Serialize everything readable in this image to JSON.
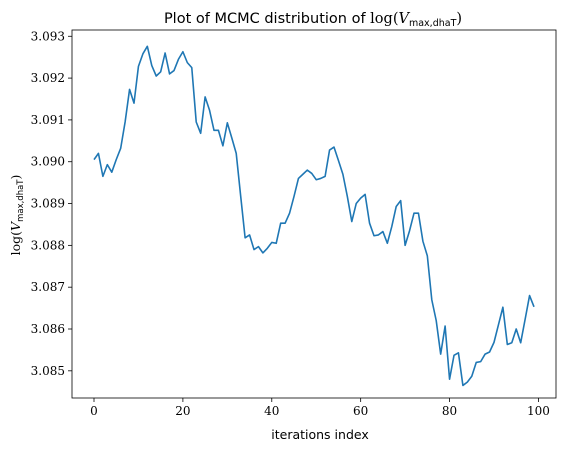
{
  "chart_data": {
    "type": "line",
    "title": {
      "prefix": "Plot of MCMC distribution of ",
      "log": "log",
      "var": "V",
      "sub": "max,dhaT"
    },
    "xlabel": "iterations index",
    "ylabel": {
      "log": "log",
      "var": "V",
      "sub": "max,dhaT"
    },
    "xlim": [
      -4.95,
      103.95
    ],
    "ylim": [
      3.08435,
      3.09315
    ],
    "xticks": [
      0,
      20,
      40,
      60,
      80,
      100
    ],
    "xtick_labels": [
      "0",
      "20",
      "40",
      "60",
      "80",
      "100"
    ],
    "yticks": [
      3.085,
      3.086,
      3.087,
      3.088,
      3.089,
      3.09,
      3.091,
      3.092,
      3.093
    ],
    "ytick_labels": [
      "3.085",
      "3.086",
      "3.087",
      "3.088",
      "3.089",
      "3.090",
      "3.091",
      "3.092",
      "3.093"
    ],
    "grid": false,
    "legend": "none",
    "series": [
      {
        "color": "#1f77b4",
        "x": [
          0,
          1,
          2,
          3,
          4,
          5,
          6,
          7,
          8,
          9,
          10,
          11,
          12,
          13,
          14,
          15,
          16,
          17,
          18,
          19,
          20,
          21,
          22,
          23,
          24,
          25,
          26,
          27,
          28,
          29,
          30,
          31,
          32,
          33,
          34,
          35,
          36,
          37,
          38,
          39,
          40,
          41,
          42,
          43,
          44,
          45,
          46,
          47,
          48,
          49,
          50,
          51,
          52,
          53,
          54,
          55,
          56,
          57,
          58,
          59,
          60,
          61,
          62,
          63,
          64,
          65,
          66,
          67,
          68,
          69,
          70,
          71,
          72,
          73,
          74,
          75,
          76,
          77,
          78,
          79,
          80,
          81,
          82,
          83,
          84,
          85,
          86,
          87,
          88,
          89,
          90,
          91,
          92,
          93,
          94,
          95,
          96,
          97,
          98,
          99
        ],
        "values": [
          3.09005,
          3.0902,
          3.08965,
          3.08993,
          3.08975,
          3.09005,
          3.09032,
          3.09095,
          3.09173,
          3.0914,
          3.09228,
          3.09258,
          3.09276,
          3.0923,
          3.09205,
          3.09215,
          3.0926,
          3.0921,
          3.09218,
          3.09245,
          3.09263,
          3.09237,
          3.09225,
          3.09095,
          3.09068,
          3.09155,
          3.09123,
          3.09075,
          3.09075,
          3.09038,
          3.09093,
          3.09057,
          3.0902,
          3.08918,
          3.08818,
          3.08825,
          3.0879,
          3.08797,
          3.08782,
          3.08793,
          3.08807,
          3.08805,
          3.08853,
          3.08853,
          3.08877,
          3.08917,
          3.0896,
          3.0897,
          3.0898,
          3.08972,
          3.08957,
          3.0896,
          3.08965,
          3.09028,
          3.09035,
          3.09003,
          3.0897,
          3.08917,
          3.08857,
          3.089,
          3.08913,
          3.08922,
          3.08853,
          3.08823,
          3.08825,
          3.08833,
          3.08805,
          3.08845,
          3.08893,
          3.08907,
          3.088,
          3.08835,
          3.08877,
          3.08877,
          3.0881,
          3.08775,
          3.0867,
          3.0862,
          3.0854,
          3.08607,
          3.0848,
          3.08537,
          3.08543,
          3.08465,
          3.08473,
          3.08487,
          3.0852,
          3.08522,
          3.0854,
          3.08545,
          3.08568,
          3.0861,
          3.08652,
          3.08563,
          3.08567,
          3.086,
          3.08567,
          3.08623,
          3.0868,
          3.08653
        ]
      }
    ]
  }
}
